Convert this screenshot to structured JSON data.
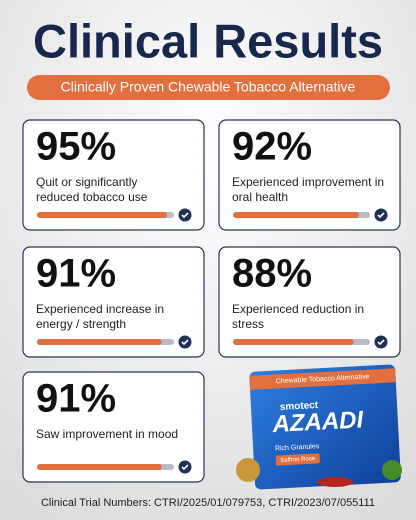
{
  "header": {
    "title": "Clinical Results",
    "subtitle": "Clinically Proven Chewable Tobacco Alternative"
  },
  "cards": [
    {
      "percent": {
        "value": 95,
        "label": "95%"
      },
      "text": "Quit or significantly reduced tobacco use"
    },
    {
      "percent": {
        "value": 92,
        "label": "92%"
      },
      "text": "Experienced improvement in oral health"
    },
    {
      "percent": {
        "value": 91,
        "label": "91%"
      },
      "text": "Experienced increase in energy / strength"
    },
    {
      "percent": {
        "value": 88,
        "label": "88%"
      },
      "text": "Experienced reduction in stress"
    },
    {
      "percent": {
        "value": 91,
        "label": "91%"
      },
      "text": "Saw improvement in mood"
    }
  ],
  "product": {
    "banner": "Chewable Tobacco Alternative",
    "brand": "smotect",
    "name": "AZAADI",
    "line": "Rich Granules",
    "flavor": "Saffron Rose"
  },
  "footer": "Clinical Trial Numbers: CTRI/2025/01/079753, CTRI/2023/07/055111"
}
